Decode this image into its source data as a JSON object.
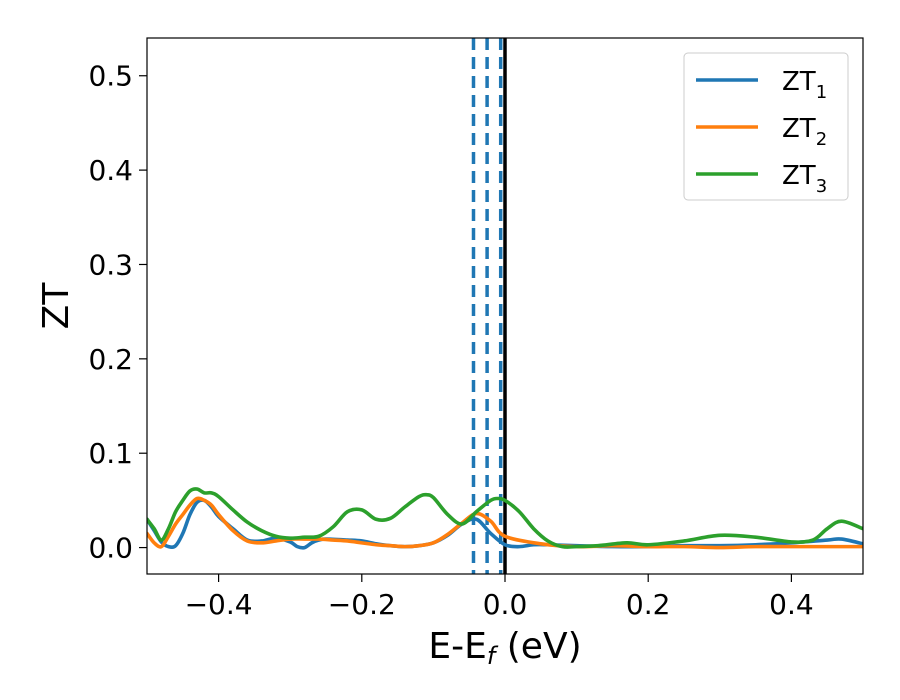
{
  "chart_data": {
    "type": "line",
    "xlabel": "E-E",
    "xlabel_sub": "f",
    "xlabel_unit": " (eV)",
    "ylabel": "ZT",
    "xlim": [
      -0.5,
      0.5
    ],
    "ylim": [
      -0.028,
      0.54
    ],
    "xticks": [
      -0.4,
      -0.2,
      0.0,
      0.2,
      0.4
    ],
    "xtick_labels": [
      "−0.4",
      "−0.2",
      "0.0",
      "0.2",
      "0.4"
    ],
    "yticks": [
      0.0,
      0.1,
      0.2,
      0.3,
      0.4,
      0.5
    ],
    "ytick_labels": [
      "0.0",
      "0.1",
      "0.2",
      "0.3",
      "0.4",
      "0.5"
    ],
    "grid": false,
    "legend_position": "top-right",
    "vlines": [
      {
        "x": 0.0,
        "style": "solid",
        "color": "#000000"
      },
      {
        "x": -0.044,
        "style": "dashed",
        "color": "#1f77b4"
      },
      {
        "x": -0.025,
        "style": "dashed",
        "color": "#1f77b4"
      },
      {
        "x": -0.006,
        "style": "dashed",
        "color": "#1f77b4"
      }
    ],
    "series": [
      {
        "name": "ZT",
        "name_sub": "1",
        "color": "#1f77b4",
        "x": [
          -0.5,
          -0.49,
          -0.48,
          -0.47,
          -0.46,
          -0.45,
          -0.44,
          -0.43,
          -0.42,
          -0.41,
          -0.4,
          -0.38,
          -0.36,
          -0.34,
          -0.32,
          -0.3,
          -0.29,
          -0.28,
          -0.27,
          -0.26,
          -0.25,
          -0.22,
          -0.2,
          -0.18,
          -0.16,
          -0.14,
          -0.12,
          -0.1,
          -0.08,
          -0.06,
          -0.04,
          -0.02,
          0.0,
          0.02,
          0.04,
          0.06,
          0.1,
          0.15,
          0.2,
          0.25,
          0.3,
          0.35,
          0.4,
          0.45,
          0.47,
          0.5
        ],
        "y": [
          0.03,
          0.018,
          0.006,
          0.001,
          0.002,
          0.015,
          0.035,
          0.048,
          0.05,
          0.043,
          0.033,
          0.02,
          0.008,
          0.007,
          0.01,
          0.006,
          0.001,
          0.0,
          0.005,
          0.008,
          0.009,
          0.008,
          0.007,
          0.004,
          0.002,
          0.001,
          0.002,
          0.005,
          0.013,
          0.025,
          0.03,
          0.015,
          0.003,
          0.001,
          0.003,
          0.003,
          0.002,
          0.001,
          0.001,
          0.002,
          0.002,
          0.003,
          0.005,
          0.008,
          0.009,
          0.004
        ]
      },
      {
        "name": "ZT",
        "name_sub": "2",
        "color": "#ff7f0e",
        "x": [
          -0.5,
          -0.49,
          -0.48,
          -0.47,
          -0.46,
          -0.45,
          -0.44,
          -0.43,
          -0.42,
          -0.41,
          -0.4,
          -0.38,
          -0.36,
          -0.34,
          -0.32,
          -0.3,
          -0.28,
          -0.26,
          -0.24,
          -0.22,
          -0.2,
          -0.18,
          -0.16,
          -0.14,
          -0.12,
          -0.1,
          -0.08,
          -0.06,
          -0.04,
          -0.02,
          0.0,
          0.05,
          0.1,
          0.15,
          0.2,
          0.25,
          0.3,
          0.35,
          0.4,
          0.45,
          0.5
        ],
        "y": [
          0.015,
          0.005,
          0.001,
          0.012,
          0.025,
          0.035,
          0.045,
          0.052,
          0.05,
          0.045,
          0.035,
          0.018,
          0.007,
          0.005,
          0.007,
          0.009,
          0.009,
          0.009,
          0.008,
          0.007,
          0.005,
          0.003,
          0.002,
          0.001,
          0.002,
          0.005,
          0.014,
          0.026,
          0.036,
          0.028,
          0.012,
          0.004,
          0.001,
          0.002,
          0.001,
          0.001,
          0.0,
          0.001,
          0.001,
          0.001,
          0.001
        ]
      },
      {
        "name": "ZT",
        "name_sub": "3",
        "color": "#2ca02c",
        "x": [
          -0.5,
          -0.49,
          -0.48,
          -0.47,
          -0.46,
          -0.45,
          -0.44,
          -0.43,
          -0.42,
          -0.41,
          -0.4,
          -0.38,
          -0.36,
          -0.34,
          -0.32,
          -0.3,
          -0.28,
          -0.26,
          -0.24,
          -0.22,
          -0.2,
          -0.18,
          -0.16,
          -0.14,
          -0.12,
          -0.11,
          -0.1,
          -0.08,
          -0.06,
          -0.04,
          -0.02,
          -0.01,
          0.0,
          0.02,
          0.04,
          0.06,
          0.08,
          0.1,
          0.13,
          0.17,
          0.2,
          0.25,
          0.3,
          0.35,
          0.4,
          0.43,
          0.45,
          0.47,
          0.5
        ],
        "y": [
          0.03,
          0.02,
          0.008,
          0.02,
          0.038,
          0.05,
          0.06,
          0.062,
          0.058,
          0.058,
          0.054,
          0.04,
          0.027,
          0.018,
          0.012,
          0.01,
          0.011,
          0.012,
          0.022,
          0.038,
          0.04,
          0.03,
          0.031,
          0.043,
          0.054,
          0.056,
          0.053,
          0.035,
          0.025,
          0.038,
          0.05,
          0.052,
          0.05,
          0.038,
          0.02,
          0.007,
          0.001,
          0.001,
          0.002,
          0.005,
          0.003,
          0.007,
          0.013,
          0.011,
          0.006,
          0.008,
          0.02,
          0.028,
          0.02
        ]
      }
    ]
  }
}
